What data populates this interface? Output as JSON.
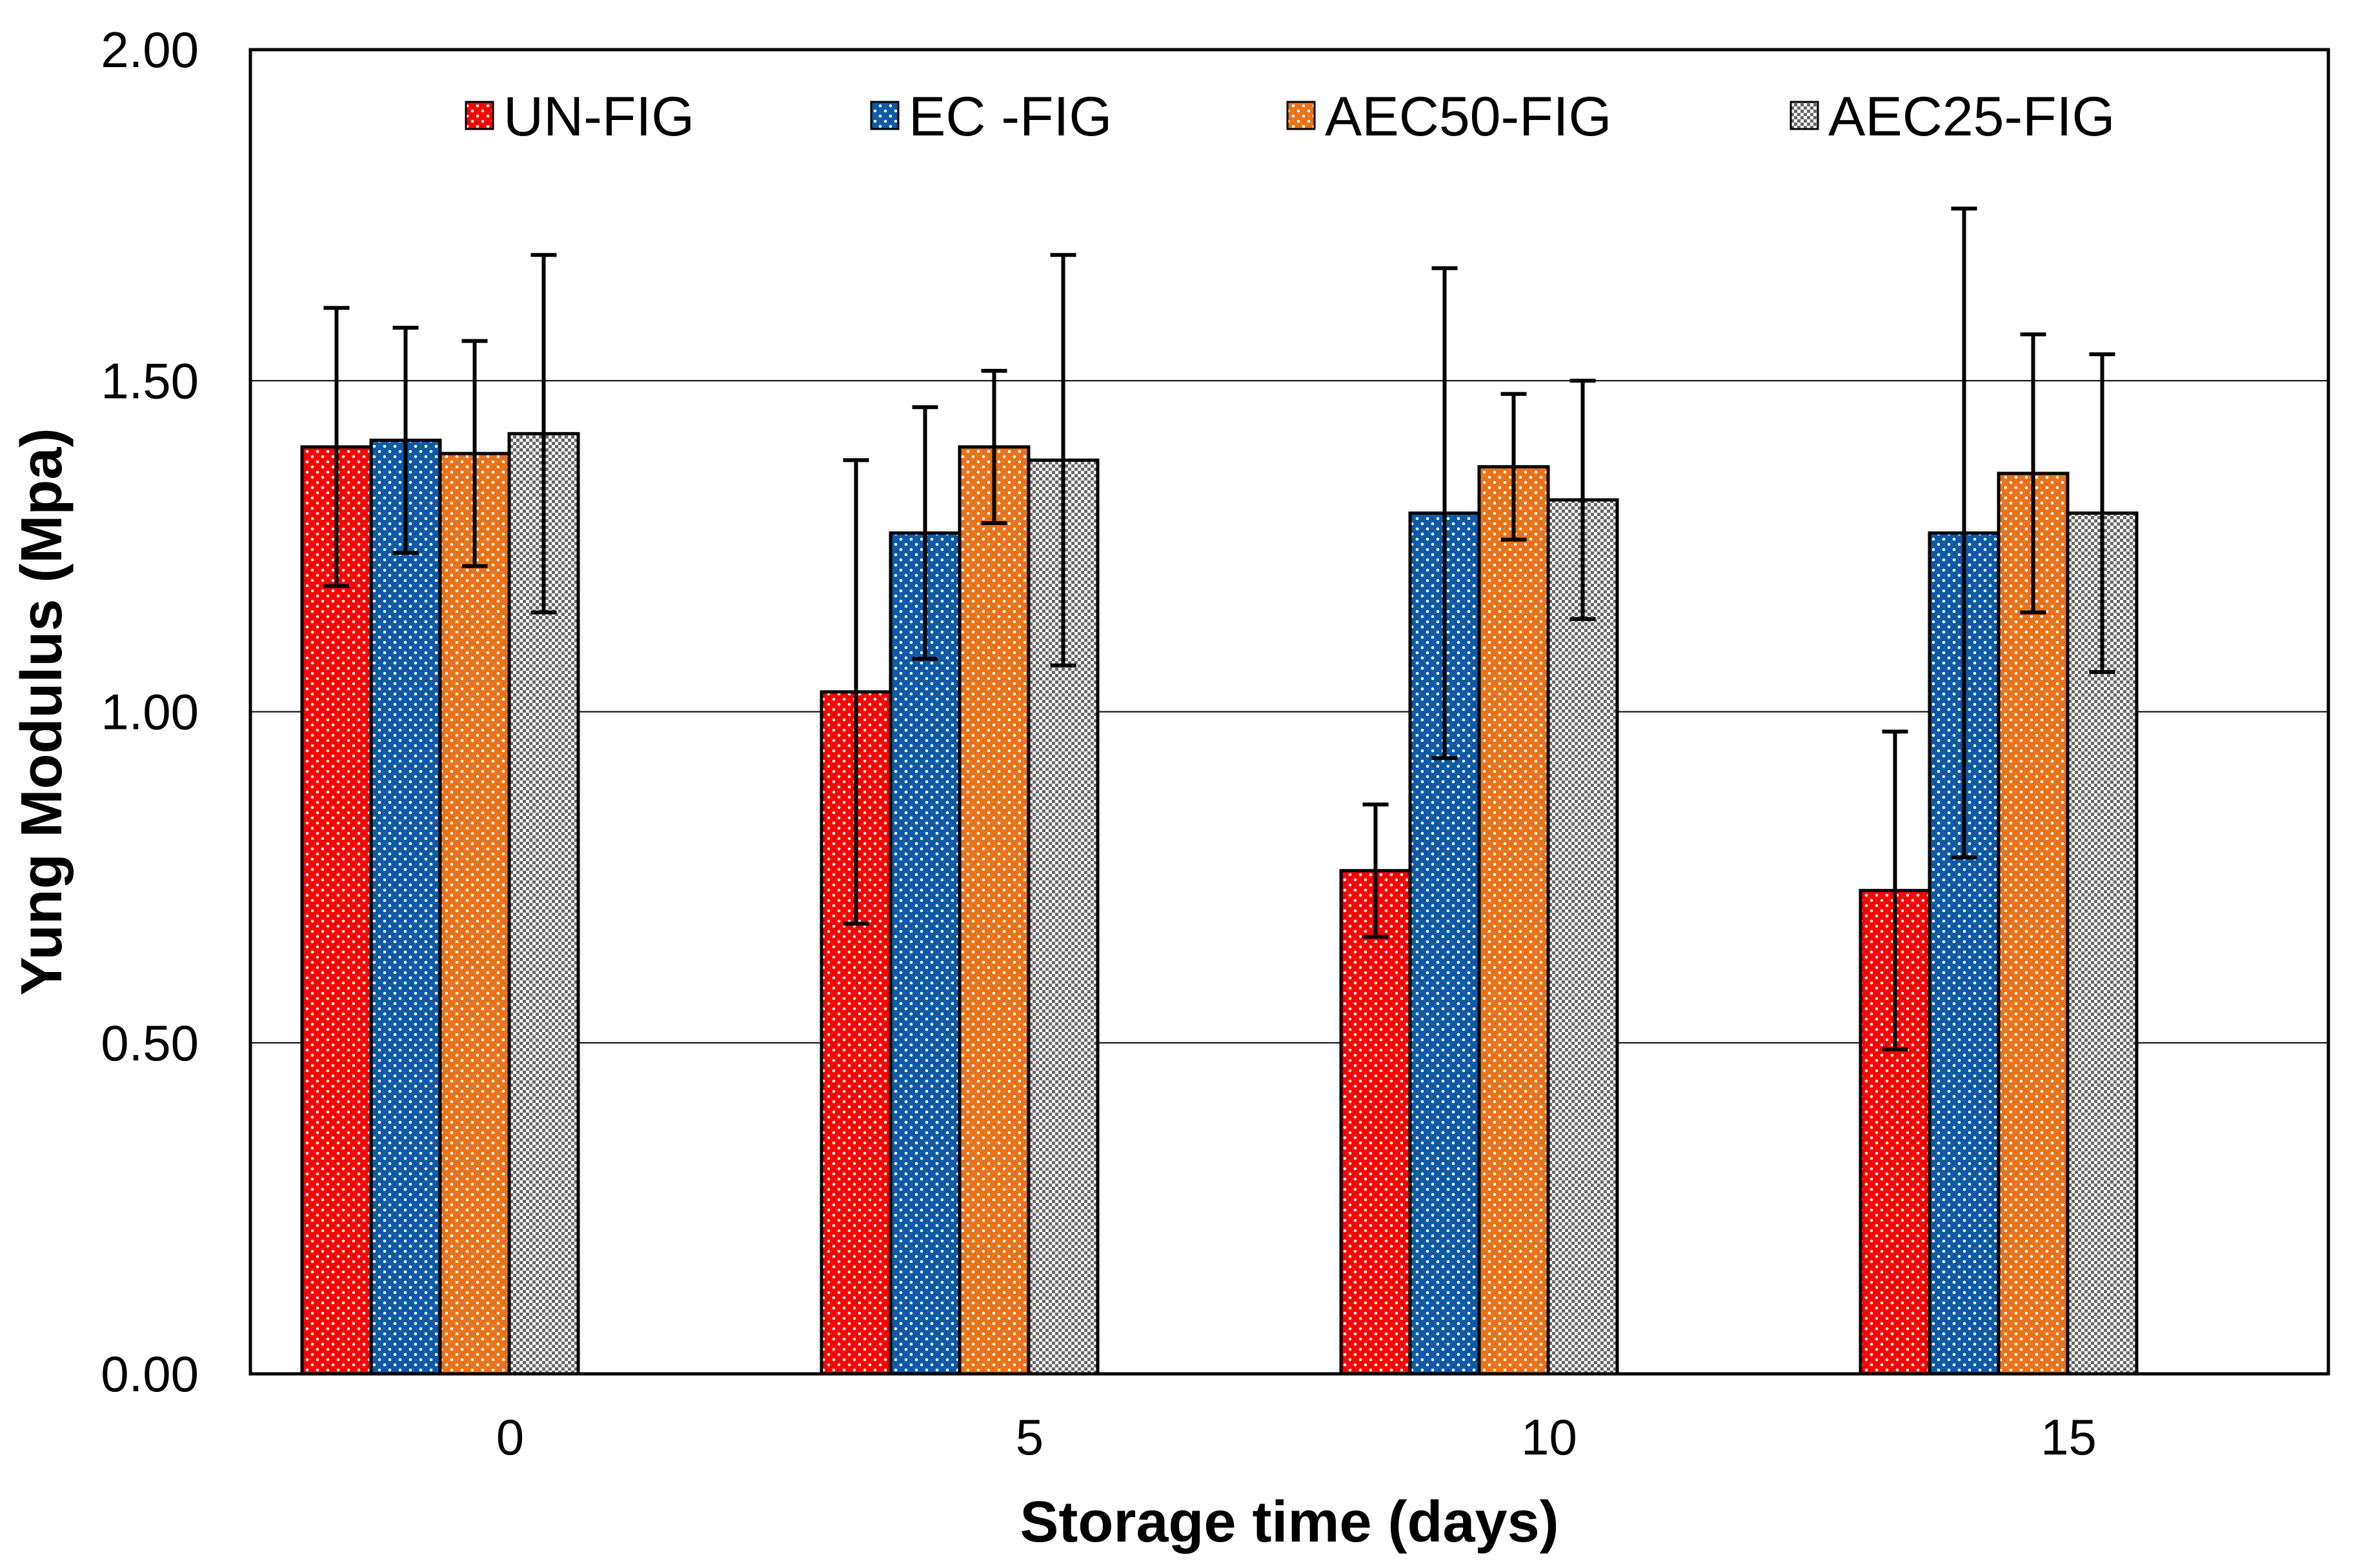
{
  "chart_data": {
    "type": "bar",
    "title": "",
    "xlabel": "Storage time (days)",
    "ylabel": "Yung Modulus (Mpa)",
    "ylim": [
      0,
      2
    ],
    "yticks": [
      0,
      0.5,
      1,
      1.5,
      2
    ],
    "ytick_labels": [
      "0.00",
      "0.50",
      "1.00",
      "1.50",
      "2.00"
    ],
    "categories": [
      "0",
      "5",
      "10",
      "15"
    ],
    "grid": "horizontal",
    "legend_position": "top",
    "series": [
      {
        "name": "UN-FIG",
        "color": "#ff0000",
        "pattern": "white-dots",
        "values": [
          1.4,
          1.03,
          0.76,
          0.73
        ],
        "errors": [
          0.21,
          0.35,
          0.1,
          0.24
        ]
      },
      {
        "name": "EC -FIG",
        "color": "#0f5aa6",
        "pattern": "white-dots",
        "values": [
          1.41,
          1.27,
          1.3,
          1.27
        ],
        "errors": [
          0.17,
          0.19,
          0.37,
          0.49
        ]
      },
      {
        "name": "AEC50-FIG",
        "color": "#e8731a",
        "pattern": "white-dots",
        "values": [
          1.39,
          1.4,
          1.37,
          1.36
        ],
        "errors": [
          0.17,
          0.115,
          0.11,
          0.21
        ]
      },
      {
        "name": "AEC25-FIG",
        "color": "#9a9a9a",
        "pattern": "checker",
        "values": [
          1.42,
          1.38,
          1.32,
          1.3
        ],
        "errors": [
          0.27,
          0.31,
          0.18,
          0.24
        ]
      }
    ]
  }
}
